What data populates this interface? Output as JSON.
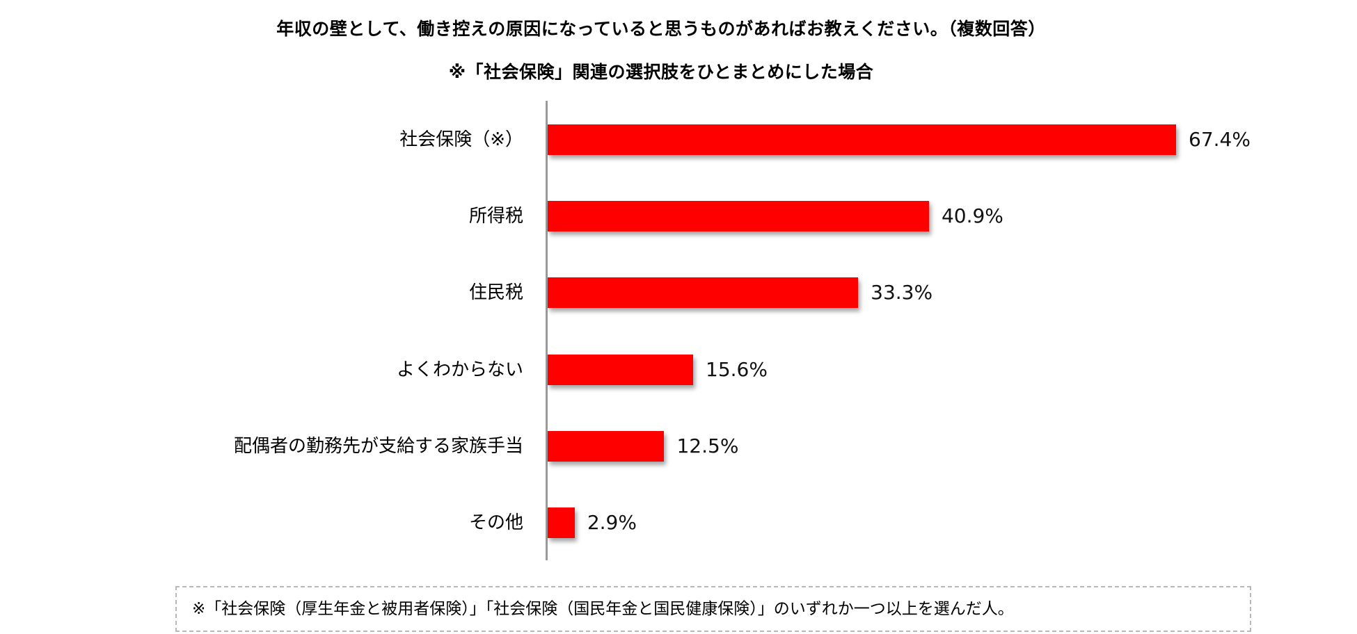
{
  "title": "年収の壁として、働き控えの原因になっていると思うものがあればお教えください。（複数回答）",
  "subtitle": "※「社会保険」関連の選択肢をひとまとめにした場合",
  "footnote": "※「社会保険（厚生年金と被用者保険）」「社会保険（国民年金と国民健康保険）」のいずれか一つ以上を選んだ人。",
  "colors": {
    "bar": "#ff0000",
    "axis": "#9a9a9a",
    "note_border": "#b8b8b8"
  },
  "chart_data": {
    "type": "bar",
    "orientation": "horizontal",
    "title": "年収の壁として、働き控えの原因になっていると思うものがあればお教えください。（複数回答）",
    "subtitle": "※「社会保険」関連の選択肢をひとまとめにした場合",
    "categories": [
      "社会保険（※）",
      "所得税",
      "住民税",
      "よくわからない",
      "配偶者の勤務先が支給する家族手当",
      "その他"
    ],
    "values": [
      67.4,
      40.9,
      33.3,
      15.6,
      12.5,
      2.9
    ],
    "labels": [
      "67.4%",
      "40.9%",
      "33.3%",
      "15.6%",
      "12.5%",
      "2.9%"
    ],
    "unit": "%",
    "xlabel": "",
    "ylabel": "",
    "grid": false,
    "legend": null,
    "annotation": "※「社会保険（厚生年金と被用者保険）」「社会保険（国民年金と国民健康保険）」のいずれか一つ以上を選んだ人。"
  }
}
